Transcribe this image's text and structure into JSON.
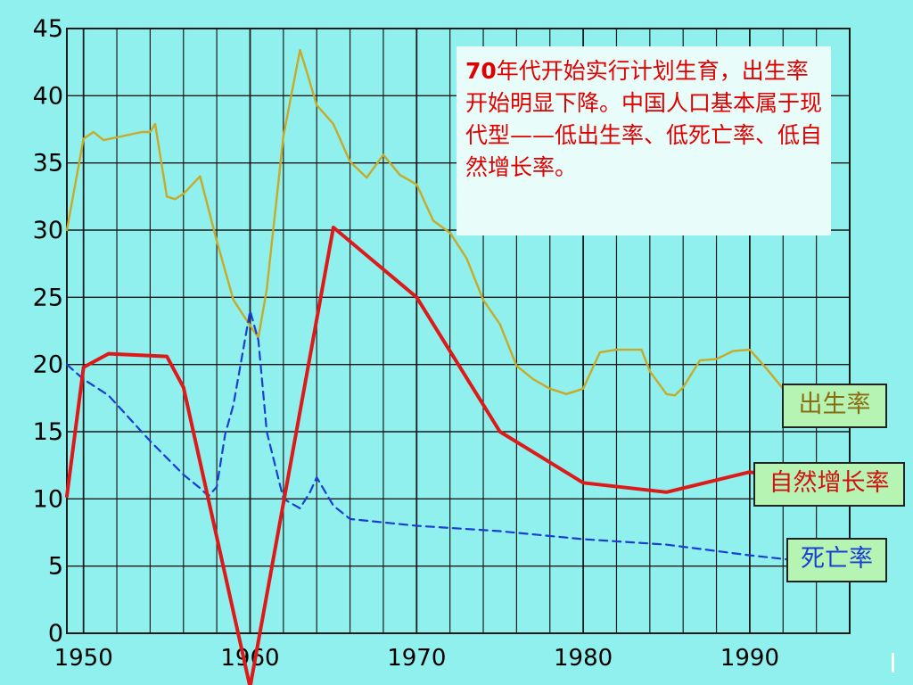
{
  "chart_data": {
    "type": "line",
    "ylim": [
      0,
      45
    ],
    "xlim": [
      1949,
      1996
    ],
    "y_ticks": [
      "0",
      "5",
      "10",
      "15",
      "20",
      "25",
      "30",
      "35",
      "40",
      "45"
    ],
    "x_ticks": [
      "1950",
      "1960",
      "1970",
      "1980",
      "1990"
    ],
    "grid": true,
    "series": [
      {
        "name": "出生率",
        "color": "#c8aa28",
        "style": "solid",
        "points": [
          [
            1949,
            30
          ],
          [
            1950,
            36.8
          ],
          [
            1950.6,
            37.3
          ],
          [
            1951.2,
            36.7
          ],
          [
            1952,
            36.9
          ],
          [
            1953.5,
            37.3
          ],
          [
            1954,
            37.3
          ],
          [
            1954.3,
            37.9
          ],
          [
            1955,
            32.5
          ],
          [
            1955.5,
            32.3
          ],
          [
            1956,
            32.7
          ],
          [
            1957,
            34.0
          ],
          [
            1958,
            29.2
          ],
          [
            1959,
            24.8
          ],
          [
            1960,
            22.9
          ],
          [
            1960.5,
            22.0
          ],
          [
            1961,
            25.6
          ],
          [
            1962,
            37.0
          ],
          [
            1963,
            43.4
          ],
          [
            1963.4,
            41.8
          ],
          [
            1964,
            39.3
          ],
          [
            1965,
            37.9
          ],
          [
            1966,
            35.1
          ],
          [
            1967,
            33.9
          ],
          [
            1968,
            35.6
          ],
          [
            1969,
            34.1
          ],
          [
            1970,
            33.4
          ],
          [
            1971,
            30.7
          ],
          [
            1972,
            29.8
          ],
          [
            1973,
            27.9
          ],
          [
            1974,
            24.8
          ],
          [
            1975,
            23.0
          ],
          [
            1976,
            19.9
          ],
          [
            1977,
            18.9
          ],
          [
            1978,
            18.2
          ],
          [
            1979,
            17.8
          ],
          [
            1980,
            18.2
          ],
          [
            1981,
            20.9
          ],
          [
            1982,
            21.1
          ],
          [
            1983,
            21.1
          ],
          [
            1983.5,
            21.1
          ],
          [
            1984,
            19.5
          ],
          [
            1985,
            17.8
          ],
          [
            1985.5,
            17.7
          ],
          [
            1986,
            18.3
          ],
          [
            1987,
            20.3
          ],
          [
            1988,
            20.4
          ],
          [
            1989,
            21.0
          ],
          [
            1990,
            21.1
          ],
          [
            1991,
            19.7
          ],
          [
            1992,
            18.2
          ],
          [
            1993,
            18.1
          ],
          [
            1994,
            17.7
          ],
          [
            1995,
            17.1
          ],
          [
            1996,
            16.9
          ]
        ]
      },
      {
        "name": "自然增长率",
        "color": "#dd1a1a",
        "style": "solid",
        "points": [
          [
            1949,
            10.2
          ],
          [
            1950,
            19.8
          ],
          [
            1951.5,
            20.8
          ],
          [
            1955,
            20.6
          ],
          [
            1956,
            18.3
          ],
          [
            1960,
            -4
          ],
          [
            1965,
            30.2
          ],
          [
            1970,
            25
          ],
          [
            1975,
            15
          ],
          [
            1980,
            11.2
          ],
          [
            1985,
            10.5
          ],
          [
            1990,
            12
          ],
          [
            1995,
            10.9
          ]
        ]
      },
      {
        "name": "死亡率",
        "color": "#1a3fd0",
        "style": "dashed",
        "points": [
          [
            1949,
            20
          ],
          [
            1950,
            18.9
          ],
          [
            1951.5,
            17.7
          ],
          [
            1954,
            14.3
          ],
          [
            1956,
            11.8
          ],
          [
            1957,
            10.8
          ],
          [
            1957.5,
            10.2
          ],
          [
            1958,
            10.9
          ],
          [
            1958.5,
            14.8
          ],
          [
            1959,
            17.0
          ],
          [
            1960,
            24.0
          ],
          [
            1960.5,
            21.8
          ],
          [
            1961,
            15.0
          ],
          [
            1962,
            10.0
          ],
          [
            1963,
            9.3
          ],
          [
            1963.6,
            10.5
          ],
          [
            1964,
            11.6
          ],
          [
            1965,
            9.5
          ],
          [
            1966,
            8.5
          ],
          [
            1970,
            8.0
          ],
          [
            1975,
            7.6
          ],
          [
            1980,
            7.0
          ],
          [
            1985,
            6.6
          ],
          [
            1990,
            5.8
          ],
          [
            1996,
            5.0
          ]
        ]
      }
    ]
  },
  "annotation": {
    "num": "70",
    "text": "年代开始实行计划生育，出生率开始明显下降。中国人口基本属于现代型——低出生率、低死亡率、低自然增长率。"
  },
  "legend": {
    "birth": "出生率",
    "growth": "自然增长率",
    "death": "死亡率"
  }
}
